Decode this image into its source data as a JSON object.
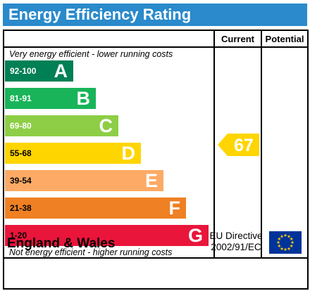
{
  "title": "Energy Efficiency Rating",
  "columns": {
    "current": "Current",
    "potential": "Potential"
  },
  "notes": {
    "top": "Very energy efficient - lower running costs",
    "bottom": "Not energy efficient - higher running costs"
  },
  "bands": [
    {
      "range": "92-100",
      "letter": "A",
      "color": "#008054",
      "range_color": "#ffffff"
    },
    {
      "range": "81-91",
      "letter": "B",
      "color": "#19b459",
      "range_color": "#ffffff"
    },
    {
      "range": "69-80",
      "letter": "C",
      "color": "#8dce46",
      "range_color": "#ffffff"
    },
    {
      "range": "55-68",
      "letter": "D",
      "color": "#ffd500",
      "range_color": "#000000"
    },
    {
      "range": "39-54",
      "letter": "E",
      "color": "#fcaa65",
      "range_color": "#000000"
    },
    {
      "range": "21-38",
      "letter": "F",
      "color": "#ef8023",
      "range_color": "#000000"
    },
    {
      "range": "1-20",
      "letter": "G",
      "color": "#e9153b",
      "range_color": "#000000"
    }
  ],
  "current_rating": {
    "value": "67",
    "band": "D",
    "color": "#ffd500"
  },
  "footer": {
    "region": "England & Wales",
    "directive_line1": "EU Directive",
    "directive_line2": "2002/91/EC",
    "flag_icon": "eu-flag-icon"
  }
}
